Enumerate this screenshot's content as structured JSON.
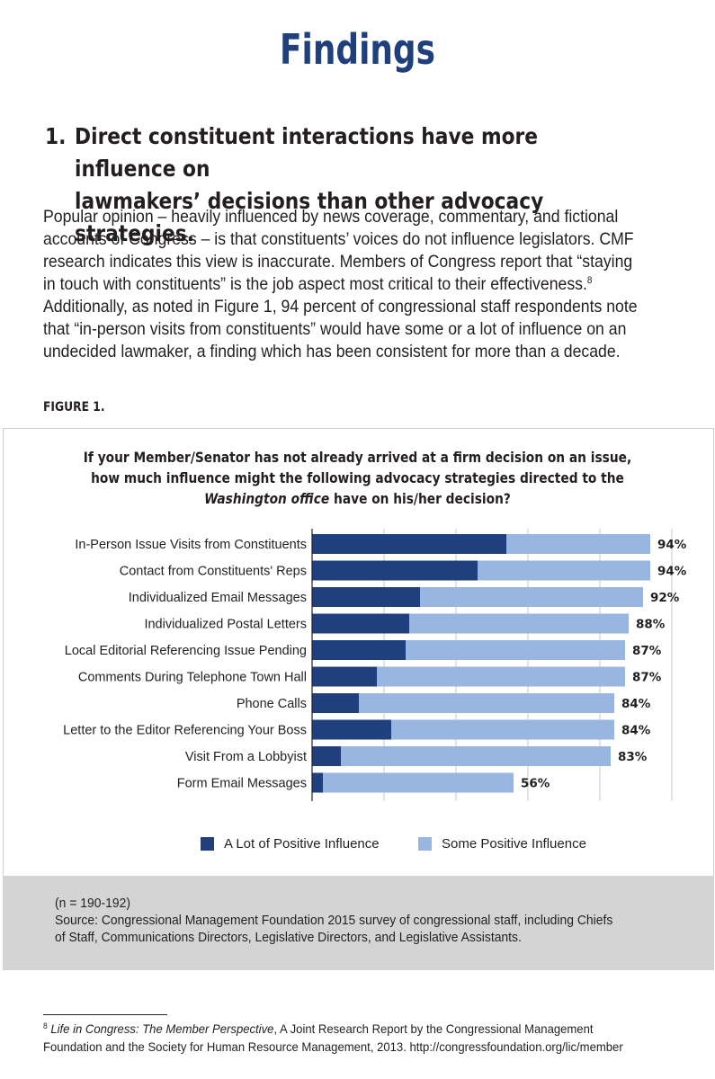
{
  "page": {
    "title": "Findings",
    "finding_number": "1.",
    "finding_line1": "Direct constituent interactions have more influence on",
    "finding_line2": "lawmakers’ decisions than other advocacy strategies.",
    "intro_lines": [
      "Popular opinion – heavily influenced by news coverage, commentary, and fictional",
      "accounts of Congress – is that constituents’ voices do not influence legislators. CMF",
      "research indicates this view is inaccurate. Members of Congress report that “staying",
      "in touch with constituents” is the job aspect most critical to their effectiveness.",
      "Additionally, as noted in Figure 1, 94 percent of congressional staff respondents note",
      "that “in-person visits from constituents” would have some or a lot of influence on an",
      "undecided lawmaker, a finding which has been consistent for more than a decade."
    ],
    "intro_footnote_ref": "8",
    "figure_label": "FIGURE 1."
  },
  "chart_title": {
    "line1": "If your Member/Senator has not already arrived at a firm decision on an issue,",
    "line2": "how much influence might the following advocacy strategies directed to the",
    "line3_italic": "Washington office",
    "line3_rest": " have on his/her decision?"
  },
  "chart_data": {
    "type": "bar",
    "orientation": "horizontal",
    "stacked": true,
    "title": "If your Member/Senator has not already arrived at a firm decision on an issue, how much influence might the following advocacy strategies directed to the Washington office have on his/her decision?",
    "categories": [
      "In-Person Issue Visits from Constituents",
      "Contact from Constituents' Reps",
      "Individualized Email Messages",
      "Individualized Postal Letters",
      "Local Editorial Referencing Issue Pending",
      "Comments During Telephone Town Hall",
      "Phone Calls",
      "Letter to the Editor Referencing Your Boss",
      "Visit From a Lobbyist",
      "Form Email Messages"
    ],
    "series": [
      {
        "name": "A Lot of Positive Influence",
        "color": "#1f3f7d",
        "values": [
          54,
          46,
          30,
          27,
          26,
          18,
          13,
          22,
          8,
          3
        ]
      },
      {
        "name": "Some Positive Influence",
        "color": "#98b6df",
        "values": [
          40,
          48,
          62,
          61,
          61,
          69,
          71,
          62,
          75,
          53
        ]
      }
    ],
    "total_labels": [
      "94%",
      "94%",
      "92%",
      "88%",
      "87%",
      "87%",
      "84%",
      "84%",
      "83%",
      "56%"
    ],
    "xlim": [
      0,
      100
    ],
    "grid": true,
    "legend": "bottom"
  },
  "source": {
    "n": "(n = 190-192)",
    "line1": "Source: Congressional Management Foundation 2015 survey of congressional staff, including Chiefs",
    "line2": "of Staff, Communications Directors, Legislative Directors, and Legislative Assistants."
  },
  "footnote": {
    "marker": "8",
    "title_italic": "Life in Congress: The Member Perspective",
    "line1_rest": ", A Joint Research Report by the Congressional Management",
    "line2": "Foundation and the Society for Human Resource Management, 2013. http://congressfoundation.org/lic/member"
  }
}
